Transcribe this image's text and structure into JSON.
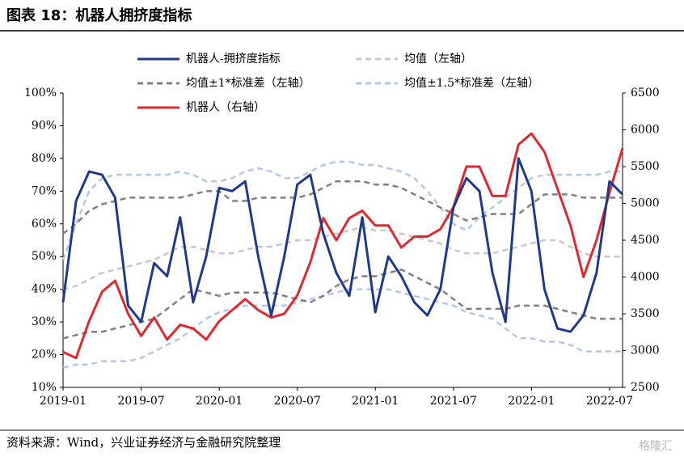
{
  "title": "图表 18：机器人拥挤度指标",
  "source": "资料来源：Wind，兴业证券经济与金融研究院整理",
  "watermark": "格隆汇",
  "chart_data": {
    "type": "line",
    "x": [
      "2019-01",
      "2019-02",
      "2019-03",
      "2019-04",
      "2019-05",
      "2019-06",
      "2019-07",
      "2019-08",
      "2019-09",
      "2019-10",
      "2019-11",
      "2019-12",
      "2020-01",
      "2020-02",
      "2020-03",
      "2020-04",
      "2020-05",
      "2020-06",
      "2020-07",
      "2020-08",
      "2020-09",
      "2020-10",
      "2020-11",
      "2020-12",
      "2021-01",
      "2021-02",
      "2021-03",
      "2021-04",
      "2021-05",
      "2021-06",
      "2021-07",
      "2021-08",
      "2021-09",
      "2021-10",
      "2021-11",
      "2021-12",
      "2022-01",
      "2022-02",
      "2022-03",
      "2022-04",
      "2022-05",
      "2022-06",
      "2022-07",
      "2022-08"
    ],
    "xticks": [
      "2019-01",
      "2019-07",
      "2020-01",
      "2020-07",
      "2021-01",
      "2021-07",
      "2022-01",
      "2022-07"
    ],
    "ylim": [
      10,
      100
    ],
    "yticks": [
      {
        "value": 10,
        "label": "10%"
      },
      {
        "value": 20,
        "label": "20%"
      },
      {
        "value": 30,
        "label": "30%"
      },
      {
        "value": 40,
        "label": "40%"
      },
      {
        "value": 50,
        "label": "50%"
      },
      {
        "value": 60,
        "label": "60%"
      },
      {
        "value": 70,
        "label": "70%"
      },
      {
        "value": 80,
        "label": "80%"
      },
      {
        "value": 90,
        "label": "90%"
      },
      {
        "value": 100,
        "label": "100%"
      }
    ],
    "y2lim": [
      2500,
      6500
    ],
    "y2ticks": [
      2500,
      3000,
      3500,
      4000,
      4500,
      5000,
      5500,
      6000,
      6500
    ],
    "series": [
      {
        "name": "机器人-拥挤度指标",
        "color": "#1f3a8c",
        "style": "solid",
        "values": [
          36,
          67,
          76,
          75,
          68,
          35,
          30,
          48,
          44,
          62,
          36,
          50,
          71,
          70,
          73,
          50,
          32,
          50,
          72,
          75,
          57,
          45,
          38,
          62,
          33,
          50,
          44,
          36,
          32,
          40,
          65,
          74,
          70,
          45,
          30,
          80,
          70,
          40,
          28,
          27,
          32,
          45,
          73,
          69
        ]
      },
      {
        "name": "均值（左轴）",
        "color": "#c8c8c8",
        "style": "dashed",
        "values": [
          40,
          41,
          43,
          45,
          46,
          47,
          48,
          49,
          51,
          53,
          53,
          52,
          51,
          51,
          52,
          53,
          53,
          54,
          55,
          55,
          56,
          57,
          58,
          59,
          58,
          58,
          57,
          56,
          55,
          54,
          52,
          51,
          51,
          51,
          52,
          53,
          54,
          55,
          55,
          53,
          51,
          50,
          50,
          50
        ]
      },
      {
        "name": "均值±1*标准差（左轴）",
        "color": "#808080",
        "style": "dashed",
        "values": [
          57,
          60,
          64,
          66,
          67,
          68,
          68,
          68,
          68,
          68,
          69,
          70,
          70,
          67,
          67,
          68,
          68,
          68,
          68,
          69,
          71,
          73,
          73,
          73,
          72,
          72,
          71,
          69,
          67,
          65,
          63,
          61,
          62,
          63,
          63,
          63,
          66,
          69,
          69,
          69,
          68,
          68,
          68,
          68
        ],
        "lower": [
          25,
          26,
          27,
          27,
          28,
          29,
          30,
          31,
          34,
          37,
          40,
          39,
          38,
          39,
          39,
          39,
          39,
          38,
          37,
          36,
          38,
          41,
          43,
          44,
          44,
          45,
          46,
          44,
          42,
          40,
          37,
          34,
          34,
          34,
          34,
          35,
          35,
          35,
          34,
          33,
          32,
          31,
          31,
          31
        ]
      },
      {
        "name": "均值±1.5*标准差（左轴）",
        "color": "#b4c7e7",
        "style": "dashed",
        "values": [
          49,
          60,
          70,
          74,
          75,
          75,
          75,
          75,
          75,
          76,
          75,
          73,
          73,
          74,
          76,
          77,
          76,
          74,
          74,
          76,
          78,
          79,
          79,
          78,
          78,
          77,
          76,
          74,
          70,
          65,
          60,
          58,
          62,
          65,
          68,
          71,
          74,
          75,
          75,
          75,
          75,
          75,
          76,
          76
        ],
        "lower": [
          16,
          17,
          17,
          18,
          18,
          18,
          19,
          21,
          23,
          25,
          28,
          31,
          33,
          34,
          35,
          35,
          35,
          35,
          36,
          37,
          38,
          39,
          40,
          40,
          40,
          40,
          39,
          38,
          37,
          36,
          35,
          33,
          32,
          31,
          28,
          25,
          25,
          24,
          24,
          23,
          21,
          21,
          21,
          21
        ]
      },
      {
        "name": "机器人（右轴）",
        "color": "#e0282e",
        "style": "solid",
        "axis": "y2",
        "values": [
          2980,
          2900,
          3400,
          3800,
          3950,
          3500,
          3200,
          3450,
          3150,
          3350,
          3300,
          3150,
          3400,
          3550,
          3700,
          3550,
          3450,
          3500,
          3750,
          4200,
          4800,
          4500,
          4800,
          4900,
          4700,
          4700,
          4400,
          4550,
          4550,
          4650,
          4950,
          5500,
          5500,
          5100,
          5100,
          5800,
          5950,
          5700,
          5200,
          4700,
          4000,
          4500,
          5150,
          5750
        ]
      }
    ]
  }
}
